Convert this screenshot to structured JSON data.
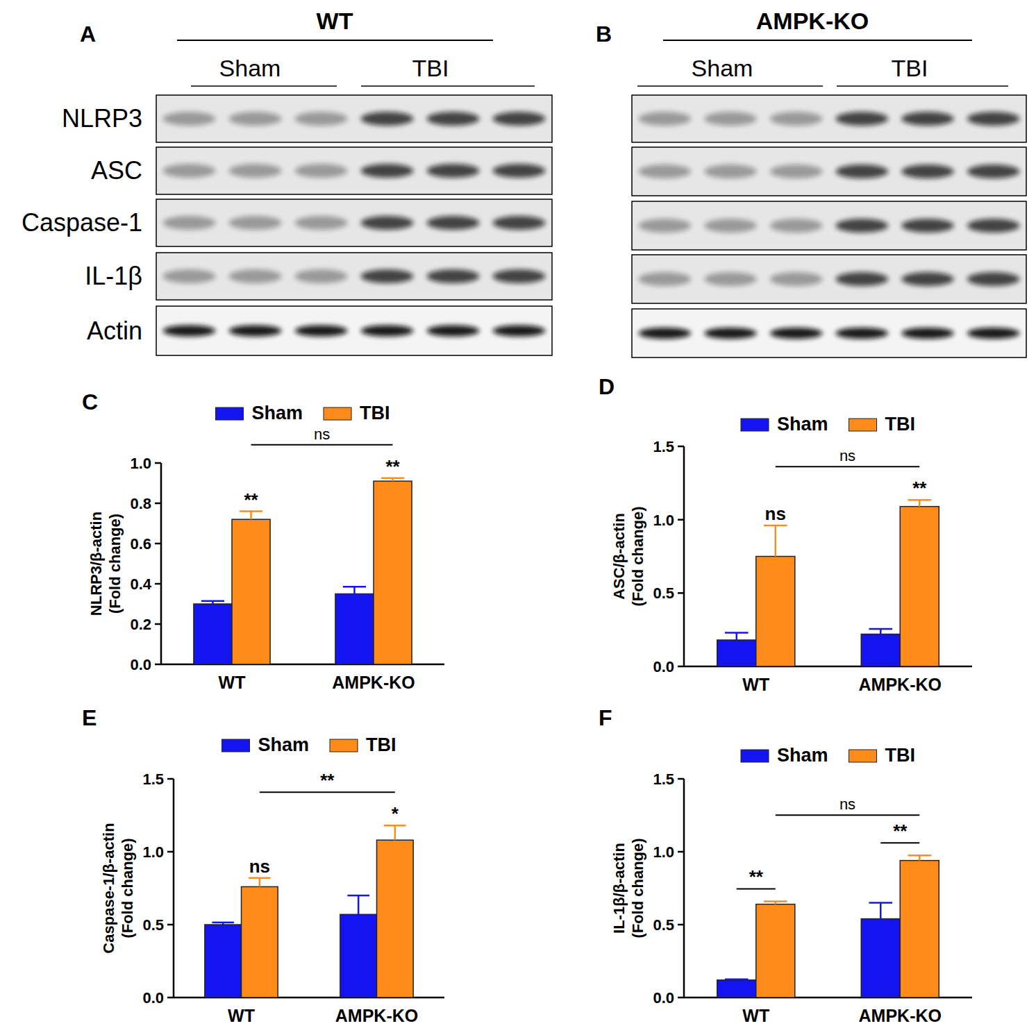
{
  "blots": [
    {
      "panel": "A",
      "genotype": "WT",
      "groups": [
        "Sham",
        "TBI"
      ],
      "lanes": 3,
      "rows": [
        "NLRP3",
        "ASC",
        "Caspase-1",
        "IL-1β",
        "Actin"
      ]
    },
    {
      "panel": "B",
      "genotype": "AMPK-KO",
      "groups": [
        "Sham",
        "TBI"
      ],
      "lanes": 3
    }
  ],
  "chart_data": [
    {
      "type": "bar",
      "panel": "C",
      "categories": [
        "WT",
        "AMPK-KO"
      ],
      "ylabel": [
        "NLRP3/β-actin",
        "(Fold change)"
      ],
      "ylim": [
        0,
        1.0
      ],
      "yticks": [
        {
          "value": 0,
          "label": "0.0"
        },
        0.2,
        0.4,
        0.6,
        0.8,
        {
          "value": 1.0,
          "label": "1.0"
        }
      ],
      "legend": "top",
      "series": [
        {
          "name": "Sham",
          "color": "#1414f0",
          "values": [
            0.3,
            0.35
          ],
          "errors": [
            0.015,
            0.035
          ]
        },
        {
          "name": "TBI",
          "color": "#ff8c1a",
          "values": [
            0.72,
            0.91
          ],
          "errors": [
            0.04,
            0.015
          ]
        }
      ],
      "annotations": [
        {
          "text": "**",
          "series": 1,
          "category": 0
        },
        {
          "text": "**",
          "series": 1,
          "category": 1
        }
      ],
      "brackets": [
        {
          "text": "ns",
          "from": [
            1,
            0
          ],
          "to": [
            1,
            1
          ]
        }
      ]
    },
    {
      "type": "bar",
      "panel": "D",
      "categories": [
        "WT",
        "AMPK-KO"
      ],
      "ylabel": [
        "ASC/β-actin",
        "(Fold change)"
      ],
      "ylim": [
        0,
        1.5
      ],
      "yticks": [
        {
          "value": 0,
          "label": "0.0"
        },
        0.5,
        {
          "value": 1.0,
          "label": "1.0"
        },
        1.5
      ],
      "legend": "top",
      "series": [
        {
          "name": "Sham",
          "color": "#1414f0",
          "values": [
            0.18,
            0.22
          ],
          "errors": [
            0.05,
            0.035
          ]
        },
        {
          "name": "TBI",
          "color": "#ff8c1a",
          "values": [
            0.75,
            1.09
          ],
          "errors": [
            0.21,
            0.045
          ]
        }
      ],
      "annotations": [
        {
          "text": "ns",
          "series": 1,
          "category": 0
        },
        {
          "text": "**",
          "series": 1,
          "category": 1
        }
      ],
      "brackets": [
        {
          "text": "ns",
          "from": [
            1,
            0
          ],
          "to": [
            1,
            1
          ]
        }
      ]
    },
    {
      "type": "bar",
      "panel": "E",
      "categories": [
        "WT",
        "AMPK-KO"
      ],
      "ylabel": [
        "Caspase-1/β-actin",
        "(Fold change)"
      ],
      "ylim": [
        0,
        1.5
      ],
      "yticks": [
        {
          "value": 0,
          "label": "0.0"
        },
        0.5,
        {
          "value": 1.0,
          "label": "1.0"
        },
        1.5
      ],
      "legend": "top",
      "series": [
        {
          "name": "Sham",
          "color": "#1414f0",
          "values": [
            0.5,
            0.57
          ],
          "errors": [
            0.015,
            0.13
          ]
        },
        {
          "name": "TBI",
          "color": "#ff8c1a",
          "values": [
            0.76,
            1.08
          ],
          "errors": [
            0.06,
            0.1
          ]
        }
      ],
      "annotations": [
        {
          "text": "ns",
          "series": 1,
          "category": 0
        },
        {
          "text": "*",
          "series": 1,
          "category": 1
        }
      ],
      "brackets": [
        {
          "text": "**",
          "from": [
            1,
            0
          ],
          "to": [
            1,
            1
          ]
        }
      ]
    },
    {
      "type": "bar",
      "panel": "F",
      "categories": [
        "WT",
        "AMPK-KO"
      ],
      "ylabel": [
        "IL-1β/β-actin",
        "(Fold change)"
      ],
      "ylim": [
        0,
        1.5
      ],
      "yticks": [
        {
          "value": 0,
          "label": "0.0"
        },
        0.5,
        {
          "value": 1.0,
          "label": "1.0"
        },
        1.5
      ],
      "legend": "top",
      "series": [
        {
          "name": "Sham",
          "color": "#1414f0",
          "values": [
            0.12,
            0.54
          ],
          "errors": [
            0.005,
            0.11
          ]
        },
        {
          "name": "TBI",
          "color": "#ff8c1a",
          "values": [
            0.64,
            0.94
          ],
          "errors": [
            0.02,
            0.035
          ]
        }
      ],
      "annotations": [],
      "brackets": [
        {
          "text": "**",
          "from": [
            0,
            0
          ],
          "to": [
            1,
            0
          ]
        },
        {
          "text": "**",
          "from": [
            0,
            1
          ],
          "to": [
            1,
            1
          ]
        },
        {
          "text": "ns",
          "from": [
            1,
            0
          ],
          "to": [
            1,
            1
          ]
        }
      ]
    }
  ]
}
